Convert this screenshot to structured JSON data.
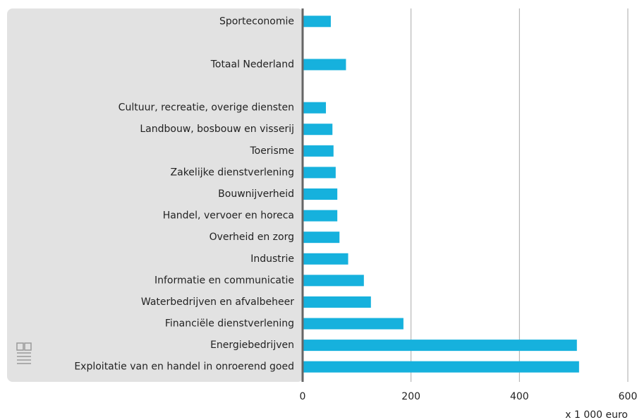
{
  "chart_data": {
    "type": "bar",
    "orientation": "horizontal",
    "categories": [
      "Sporteconomie",
      null,
      "Totaal Nederland",
      null,
      "Cultuur, recreatie, overige diensten",
      "Landbouw, bosbouw en visserij",
      "Toerisme",
      "Zakelijke dienstverlening",
      "Bouwnijverheid",
      "Handel, vervoer en horeca",
      "Overheid en zorg",
      "Industrie",
      "Informatie en communicatie",
      "Waterbedrijven en afvalbeheer",
      "Financiële dienstverlening",
      "Energiebedrijven",
      "Exploitatie van en handel in onroerend goed"
    ],
    "values": [
      52,
      null,
      80,
      null,
      43,
      55,
      57,
      61,
      64,
      64,
      68,
      84,
      113,
      126,
      186,
      506,
      510
    ],
    "color": "#16b1dd",
    "xlim": [
      0,
      600
    ],
    "xticks": [
      0,
      200,
      400,
      600
    ],
    "grid": true,
    "x_axis_label": "x 1 000 euro"
  }
}
